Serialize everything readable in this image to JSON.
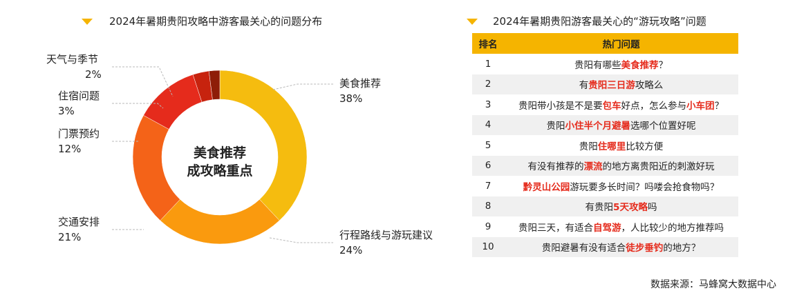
{
  "left_title": "2024年暑期贵阳攻略中游客最关心的问题分布",
  "right_title": "2024年暑期贵阳游客最关心的“游玩攻略”问题",
  "chart_data": {
    "type": "pie",
    "title": "2024年暑期贵阳攻略中游客最关心的问题分布",
    "center_text": [
      "美食推荐",
      "成攻略重点"
    ],
    "slices": [
      {
        "name": "美食推荐",
        "value": 38,
        "label": "38%",
        "color": "#f5bc0f"
      },
      {
        "name": "行程路线与游玩建议",
        "value": 24,
        "label": "24%",
        "color": "#fa9a0e"
      },
      {
        "name": "交通安排",
        "value": 21,
        "label": "21%",
        "color": "#f46318"
      },
      {
        "name": "门票预约",
        "value": 12,
        "label": "12%",
        "color": "#e52b1c"
      },
      {
        "name": "住宿问题",
        "value": 3,
        "label": "3%",
        "color": "#c7230e"
      },
      {
        "name": "天气与季节",
        "value": 2,
        "label": "2%",
        "color": "#8e1d08"
      }
    ]
  },
  "table": {
    "headers": [
      "排名",
      "热门问题"
    ],
    "rows": [
      {
        "rank": "1",
        "parts": [
          [
            "贵阳有哪些",
            0
          ],
          [
            "美食推荐",
            1
          ],
          [
            "？",
            0
          ]
        ]
      },
      {
        "rank": "2",
        "parts": [
          [
            "有",
            0
          ],
          [
            "贵阳三日游",
            1
          ],
          [
            "攻略么",
            0
          ]
        ]
      },
      {
        "rank": "3",
        "parts": [
          [
            "贵阳带小孩是不是要",
            0
          ],
          [
            "包车",
            1
          ],
          [
            "好点，怎么参与",
            0
          ],
          [
            "小车团",
            1
          ],
          [
            "？",
            0
          ]
        ]
      },
      {
        "rank": "4",
        "parts": [
          [
            "贵阳",
            0
          ],
          [
            "小住半个月避暑",
            1
          ],
          [
            "选哪个位置好呢",
            0
          ]
        ]
      },
      {
        "rank": "5",
        "parts": [
          [
            "贵阳",
            0
          ],
          [
            "住哪里",
            1
          ],
          [
            "比较方便",
            0
          ]
        ]
      },
      {
        "rank": "6",
        "parts": [
          [
            "有没有推荐的",
            0
          ],
          [
            "漂流",
            1
          ],
          [
            "的地方离贵阳近的刺激好玩",
            0
          ]
        ]
      },
      {
        "rank": "7",
        "parts": [
          [
            "黔灵山公园",
            1
          ],
          [
            "游玩要多长时间？吗喽会抢食物吗？",
            0
          ]
        ]
      },
      {
        "rank": "8",
        "parts": [
          [
            "有贵阳",
            0
          ],
          [
            "5天攻略",
            1
          ],
          [
            "吗",
            0
          ]
        ]
      },
      {
        "rank": "9",
        "parts": [
          [
            "贵阳三天，有适合",
            0
          ],
          [
            "自驾游",
            1
          ],
          [
            "，人比较少的地方推荐吗",
            0
          ]
        ]
      },
      {
        "rank": "10",
        "parts": [
          [
            "贵阳避暑有没有适合",
            0
          ],
          [
            "徒步垂钓",
            1
          ],
          [
            "的地方？",
            0
          ]
        ]
      }
    ]
  },
  "source": "数据来源：马蜂窝大数据中心"
}
